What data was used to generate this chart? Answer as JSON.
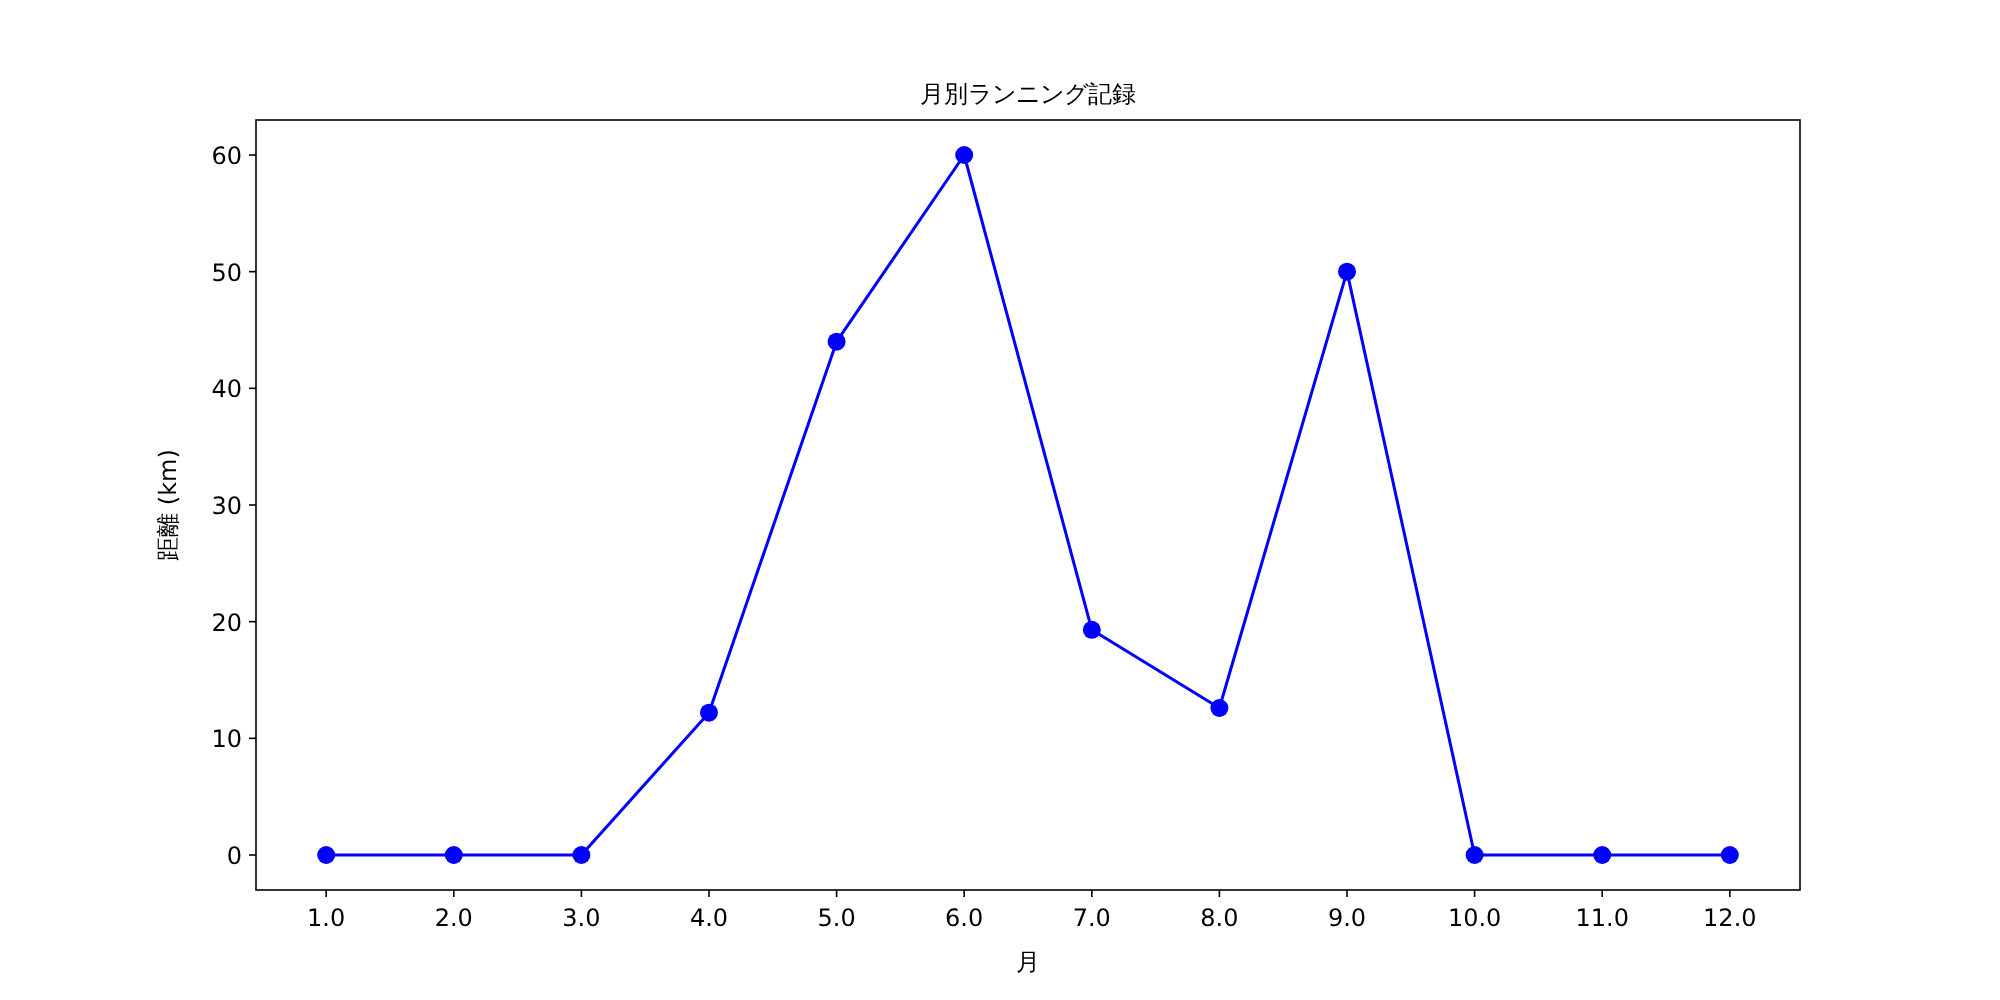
{
  "chart_data": {
    "type": "line",
    "title": "月別ランニング記録",
    "xlabel": "月",
    "ylabel": "距離 (km)",
    "x": [
      1,
      2,
      3,
      4,
      5,
      6,
      7,
      8,
      9,
      10,
      11,
      12
    ],
    "series": [
      {
        "color": "#0000ff",
        "values": [
          0,
          0,
          0,
          12.2,
          44.0,
          60.0,
          19.3,
          12.6,
          50.0,
          0,
          0,
          0
        ]
      }
    ],
    "xlim": [
      0.45,
      12.55
    ],
    "ylim": [
      -3,
      63
    ],
    "xticks": [
      {
        "value": 1,
        "label": "1.0"
      },
      {
        "value": 2,
        "label": "2.0"
      },
      {
        "value": 3,
        "label": "3.0"
      },
      {
        "value": 4,
        "label": "4.0"
      },
      {
        "value": 5,
        "label": "5.0"
      },
      {
        "value": 6,
        "label": "6.0"
      },
      {
        "value": 7,
        "label": "7.0"
      },
      {
        "value": 8,
        "label": "8.0"
      },
      {
        "value": 9,
        "label": "9.0"
      },
      {
        "value": 10,
        "label": "10.0"
      },
      {
        "value": 11,
        "label": "11.0"
      },
      {
        "value": 12,
        "label": "12.0"
      }
    ],
    "yticks": [
      0,
      10,
      20,
      30,
      40,
      50,
      60
    ],
    "marker": "circle",
    "line_style": "solid"
  }
}
